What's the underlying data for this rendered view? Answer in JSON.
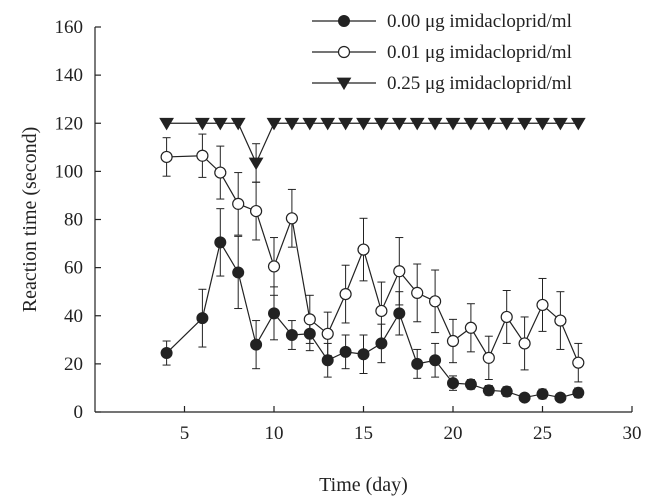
{
  "chart_data": {
    "type": "line",
    "title": "",
    "xlabel": "Time (day)",
    "ylabel": "Reaction time (second)",
    "xlim": [
      0,
      30
    ],
    "ylim": [
      0,
      160
    ],
    "xticks": [
      5,
      10,
      15,
      20,
      25,
      30
    ],
    "yticks": [
      0,
      20,
      40,
      60,
      80,
      100,
      120,
      140,
      160
    ],
    "grid": false,
    "legend_position": "top-right",
    "series": [
      {
        "name": "0.00 μg imidacloprid/ml",
        "marker": "filled-circle",
        "color": "#222222",
        "x": [
          4,
          6,
          7,
          8,
          9,
          10,
          11,
          12,
          13,
          14,
          15,
          16,
          17,
          18,
          19,
          20,
          21,
          22,
          23,
          24,
          25,
          26,
          27
        ],
        "y": [
          24.5,
          39,
          70.5,
          58,
          28,
          41,
          32,
          32.5,
          21.5,
          25,
          24,
          28.5,
          41,
          20,
          21.5,
          12,
          11.5,
          9,
          8.5,
          6,
          7.5,
          6,
          8
        ],
        "err": [
          5,
          12,
          14,
          15,
          10,
          11,
          6,
          7,
          7,
          7,
          8,
          8,
          9,
          6,
          7,
          3,
          2,
          2,
          2,
          1.5,
          2,
          1.5,
          2
        ]
      },
      {
        "name": "0.01 μg imidacloprid/ml",
        "marker": "open-circle",
        "color": "#222222",
        "x": [
          4,
          6,
          7,
          8,
          9,
          10,
          11,
          12,
          13,
          14,
          15,
          16,
          17,
          18,
          19,
          20,
          21,
          22,
          23,
          24,
          25,
          26,
          27
        ],
        "y": [
          106,
          106.5,
          99.5,
          86.5,
          83.5,
          60.5,
          80.5,
          38.5,
          32.5,
          49,
          67.5,
          42,
          58.5,
          49.5,
          46,
          29.5,
          35,
          22.5,
          39.5,
          28.5,
          44.5,
          38,
          20.5
        ],
        "err": [
          8,
          9,
          11,
          13,
          12,
          12,
          12,
          10,
          9,
          12,
          13,
          12,
          14,
          12,
          13,
          9,
          10,
          9,
          11,
          11,
          11,
          12,
          8
        ]
      },
      {
        "name": "0.25 μg imidacloprid/ml",
        "marker": "filled-triangle-down",
        "color": "#222222",
        "x": [
          4,
          6,
          7,
          8,
          9,
          10,
          11,
          12,
          13,
          14,
          15,
          16,
          17,
          18,
          19,
          20,
          21,
          22,
          23,
          24,
          25,
          26,
          27
        ],
        "y": [
          120,
          120,
          120,
          120,
          103.5,
          120,
          120,
          120,
          120,
          120,
          120,
          120,
          120,
          120,
          120,
          120,
          120,
          120,
          120,
          120,
          120,
          120,
          120
        ],
        "err": [
          0,
          0,
          0,
          0,
          8,
          0,
          0,
          0,
          0,
          0,
          0,
          0,
          0,
          0,
          0,
          0,
          0,
          0,
          0,
          0,
          0,
          0,
          0
        ]
      }
    ]
  }
}
